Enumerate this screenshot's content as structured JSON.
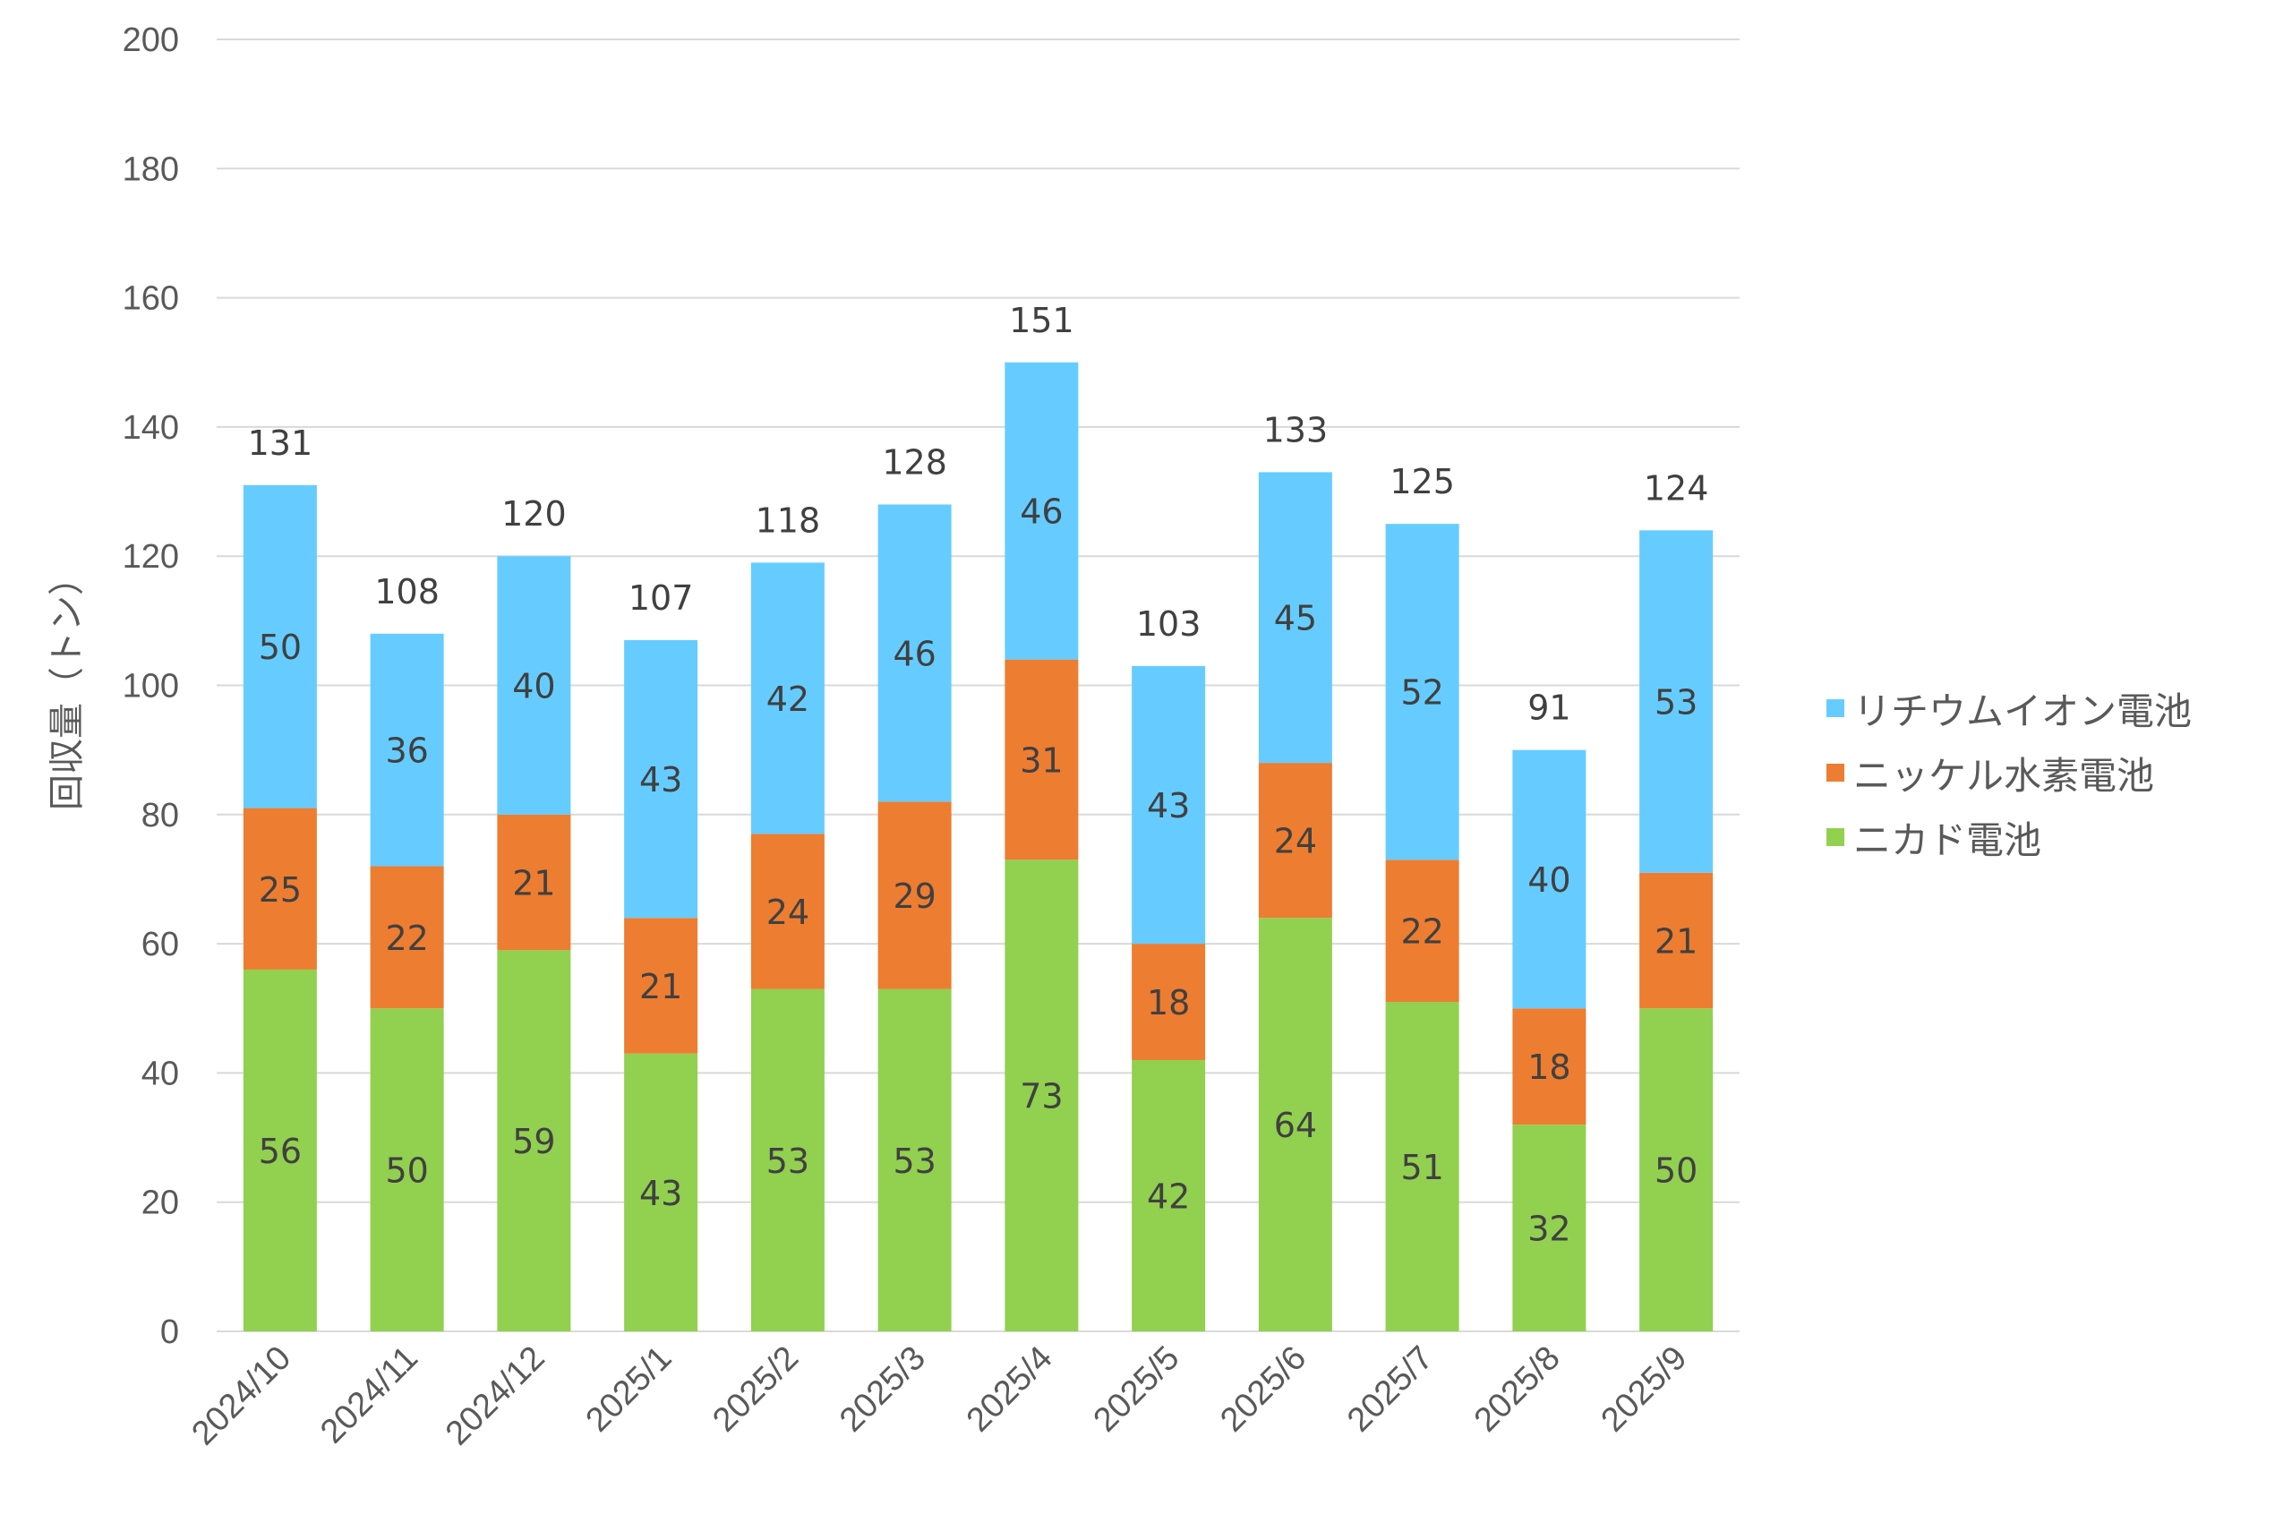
{
  "chart_data": {
    "type": "bar",
    "stacked": true,
    "title": "",
    "xlabel": "",
    "ylabel": "回収量（トン）",
    "ylim": [
      0,
      200
    ],
    "yticks": [
      0,
      20,
      40,
      60,
      80,
      100,
      120,
      140,
      160,
      180,
      200
    ],
    "grid": true,
    "legend_position": "right",
    "categories": [
      "2024/10",
      "2024/11",
      "2024/12",
      "2025/1",
      "2025/2",
      "2025/3",
      "2025/4",
      "2025/5",
      "2025/6",
      "2025/7",
      "2025/8",
      "2025/9"
    ],
    "series": [
      {
        "name": "ニカド電池",
        "color": "#92D050",
        "values": [
          56,
          50,
          59,
          43,
          53,
          53,
          73,
          42,
          64,
          51,
          32,
          50
        ]
      },
      {
        "name": "ニッケル水素電池",
        "color": "#ED7D31",
        "values": [
          25,
          22,
          21,
          21,
          24,
          29,
          31,
          18,
          24,
          22,
          18,
          21
        ]
      },
      {
        "name": "リチウムイオン電池",
        "color": "#66CCFF",
        "values": [
          50,
          36,
          40,
          43,
          42,
          46,
          46,
          43,
          45,
          52,
          40,
          53
        ]
      }
    ],
    "totals": [
      131,
      108,
      120,
      107,
      118,
      128,
      151,
      103,
      133,
      125,
      91,
      124
    ],
    "legend_order": [
      "リチウムイオン電池",
      "ニッケル水素電池",
      "ニカド電池"
    ]
  }
}
